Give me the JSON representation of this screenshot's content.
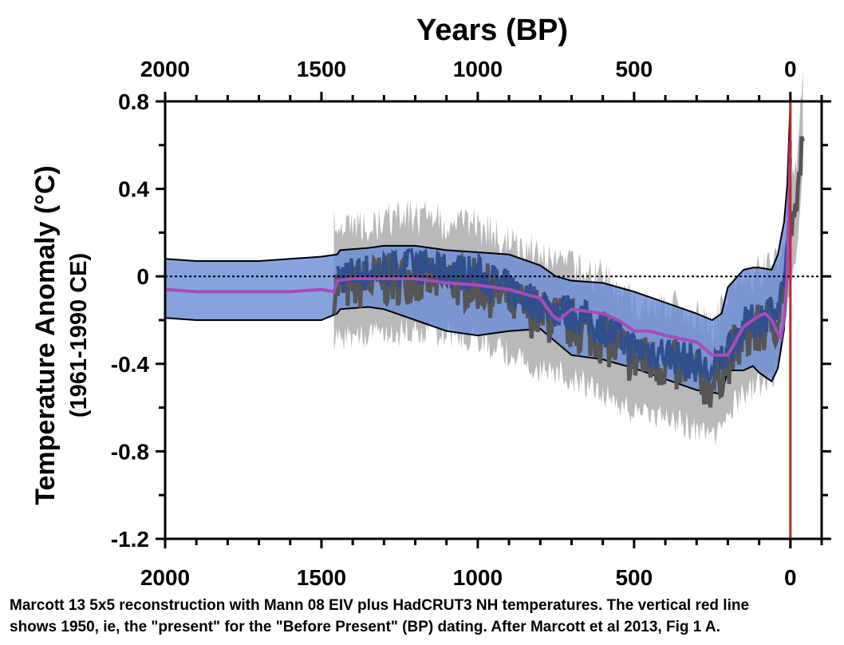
{
  "chart_data": {
    "type": "line",
    "title": "Years (BP)",
    "ylabel": "Temperature Anomaly (°C)",
    "ylabel_sub": "(1961-1990 CE)",
    "xlim": [
      2000,
      -100
    ],
    "ylim": [
      -1.2,
      0.8
    ],
    "x_ticks": [
      2000,
      1500,
      1000,
      500,
      0
    ],
    "y_ticks": [
      0.8,
      0.4,
      0,
      -0.4,
      -0.8,
      -1.2
    ],
    "y_tick_labels": [
      "0.8",
      "0.4",
      "0",
      "-0.4",
      "-0.8",
      "-1.2"
    ],
    "zero_line": "dotted",
    "vertical_line": {
      "x": 0,
      "color": "#c0282d",
      "label": "1950 (present)"
    },
    "colors": {
      "band": "#6b8fd6",
      "band_edge": "#000000",
      "mean": "#a84bb8",
      "mann_dark": "#555555",
      "mann_light": "#b9b9b9",
      "blue_series": "#2f4f8f"
    },
    "series": [
      {
        "role": "marcott-band",
        "x": [
          2000,
          1900,
          1800,
          1700,
          1600,
          1500,
          1450,
          1440,
          1350,
          1300,
          1200,
          1100,
          1000,
          900,
          800,
          750,
          700,
          600,
          500,
          400,
          300,
          250,
          220,
          200,
          150,
          120,
          100,
          60,
          40,
          20,
          10,
          0
        ],
        "upper": [
          0.08,
          0.07,
          0.07,
          0.07,
          0.08,
          0.09,
          0.1,
          0.12,
          0.13,
          0.14,
          0.14,
          0.12,
          0.11,
          0.1,
          0.05,
          0.0,
          -0.02,
          -0.03,
          -0.07,
          -0.12,
          -0.17,
          -0.2,
          -0.17,
          -0.05,
          0.03,
          0.04,
          0.04,
          0.03,
          0.1,
          0.25,
          0.42,
          0.8
        ],
        "lower": [
          -0.19,
          -0.2,
          -0.2,
          -0.2,
          -0.2,
          -0.2,
          -0.17,
          -0.15,
          -0.14,
          -0.15,
          -0.2,
          -0.25,
          -0.27,
          -0.25,
          -0.24,
          -0.3,
          -0.36,
          -0.38,
          -0.42,
          -0.47,
          -0.52,
          -0.53,
          -0.54,
          -0.43,
          -0.43,
          -0.41,
          -0.44,
          -0.48,
          -0.42,
          -0.24,
          0.05,
          0.52
        ]
      },
      {
        "role": "marcott-mean",
        "x": [
          2000,
          1900,
          1800,
          1700,
          1600,
          1500,
          1460,
          1450,
          1400,
          1300,
          1200,
          1100,
          1000,
          900,
          800,
          760,
          740,
          700,
          600,
          550,
          500,
          450,
          400,
          300,
          250,
          200,
          150,
          100,
          80,
          60,
          40,
          30,
          20,
          10,
          0
        ],
        "y": [
          -0.06,
          -0.07,
          -0.07,
          -0.07,
          -0.07,
          -0.06,
          -0.07,
          -0.02,
          -0.01,
          -0.01,
          -0.01,
          -0.03,
          -0.04,
          -0.06,
          -0.1,
          -0.18,
          -0.2,
          -0.15,
          -0.17,
          -0.2,
          -0.25,
          -0.25,
          -0.27,
          -0.3,
          -0.36,
          -0.36,
          -0.23,
          -0.18,
          -0.17,
          -0.2,
          -0.26,
          -0.28,
          -0.2,
          0.0,
          0.62
        ]
      },
      {
        "role": "mann-ensemble",
        "x_start": 1460,
        "x_end": -40,
        "trend_x": [
          1460,
          1300,
          1200,
          1000,
          800,
          700,
          600,
          500,
          400,
          300,
          250,
          200,
          150,
          100,
          60,
          40,
          20,
          0,
          -20,
          -40
        ],
        "trend_y": [
          -0.05,
          -0.02,
          0.0,
          -0.04,
          -0.18,
          -0.22,
          -0.28,
          -0.38,
          -0.4,
          -0.45,
          -0.5,
          -0.38,
          -0.28,
          -0.25,
          -0.2,
          -0.2,
          -0.05,
          0.2,
          0.3,
          0.68
        ]
      }
    ]
  },
  "caption": {
    "line1": "Marcott 13 5x5 reconstruction with Mann 08 EIV plus HadCRUT3 NH temperatures.  The vertical red line",
    "line2": "shows 1950, ie, the \"present\" for the \"Before Present\" (BP) dating.  After Marcott et al 2013, Fig 1 A."
  }
}
